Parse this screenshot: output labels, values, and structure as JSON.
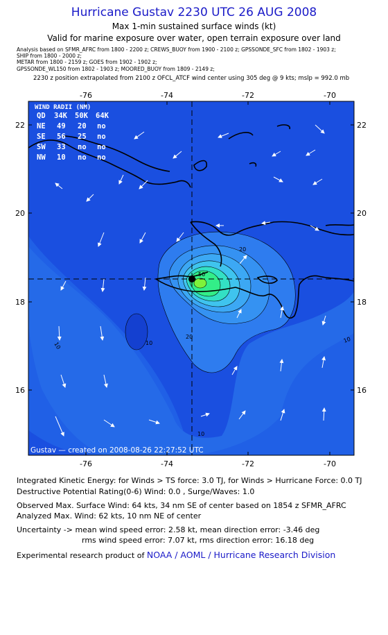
{
  "header": {
    "title": "Hurricane Gustav 2230 UTC 26 AUG 2008",
    "subtitle": "Max 1-min sustained surface winds (kt)",
    "validity": "Valid for marine exposure over water, open terrain exposure over land"
  },
  "analysis_sources": [
    "Analysis based on  SFMR_AFRC from 1800 - 2200 z;  CREWS_BUOY from 1900 - 2100 z;  GPSSONDE_SFC from 1802 - 1903 z;",
    "SHIP from 1800 - 2000 z;",
    "METAR from 1800 - 2159 z;  GOES from 1902 - 1902 z;",
    "GPSSONDE_WL150 from 1802 - 1903 z;  MOORED_BUOY from 1809 - 2149 z;"
  ],
  "extrapolation": "2230 z position extrapolated from 2100 z OFCL_ATCF wind center using 305 deg @ 9 kts; mslp = 992.0 mb",
  "map": {
    "lon_range": [
      -77.5,
      -69.5
    ],
    "lat_range": [
      14.7,
      22.5
    ],
    "lon_ticks": [
      "-76",
      "-74",
      "-72",
      "-70"
    ],
    "lat_ticks": [
      "22",
      "20",
      "18",
      "16"
    ],
    "center": {
      "lon": -73.6,
      "lat": 18.5
    },
    "contour_labels": [
      "20",
      "10",
      "10",
      "10",
      "10",
      "20",
      "50"
    ],
    "footer": "Gustav — created on 2008-08-26 22:27:52 UTC",
    "colors": {
      "ocean": "#1a4fe0",
      "outer": "#2c78ee",
      "core": "#33ee88",
      "coast": "#000000",
      "arrow": "#ffffff"
    }
  },
  "wind_radii": {
    "title": "WIND RADII (NM)",
    "header": [
      "QD",
      "34K",
      "50K",
      "64K"
    ],
    "rows": [
      [
        "NE",
        "49",
        "20",
        "no"
      ],
      [
        "SE",
        "56",
        "25",
        "no"
      ],
      [
        "SW",
        "33",
        "no",
        "no"
      ],
      [
        "NW",
        "10",
        "no",
        "no"
      ]
    ]
  },
  "info": {
    "ike": "Integrated Kinetic Energy:  for Winds > TS force: 3.0 TJ,  for Winds > Hurricane Force: 0.0 TJ",
    "dpr": "Destructive Potential Rating(0-6)   Wind: 0.0 , Surge/Waves: 1.0",
    "observed": "Observed Max. Surface Wind: 64 kts, 34 nm SE of center based on 1854 z SFMR_AFRC",
    "analyzed": "Analyzed Max. Wind: 62 kts, 10 nm NE of center",
    "uncert1": "Uncertainty -> mean wind speed error: 2.58 kt,   mean direction error:  -3.46 deg",
    "uncert2": "rms wind speed error: 7.07 kt,   rms direction error: 16.18 deg",
    "credit_prefix": "Experimental research product of",
    "credit_link": "NOAA / AOML / Hurricane Research Division"
  }
}
